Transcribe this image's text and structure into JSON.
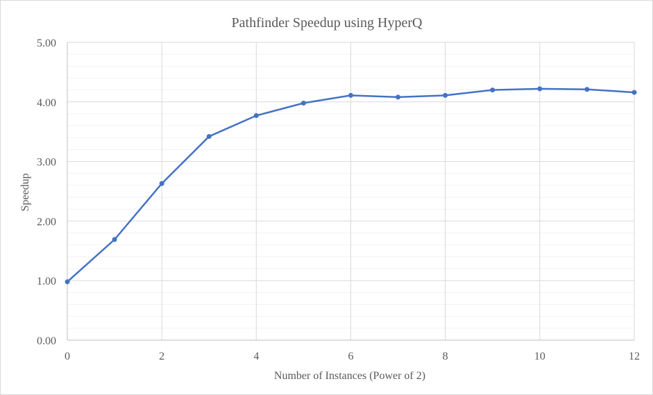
{
  "chart_data": {
    "type": "line",
    "title": "Pathfinder Speedup using HyperQ",
    "xlabel": "Number of Instances (Power of 2)",
    "ylabel": "Speedup",
    "xlim": [
      0,
      12
    ],
    "ylim": [
      0,
      5
    ],
    "x_ticks": [
      0,
      2,
      4,
      6,
      8,
      10,
      12
    ],
    "y_ticks": [
      "0.00",
      "1.00",
      "2.00",
      "3.00",
      "4.00",
      "5.00"
    ],
    "grid": true,
    "legend": "none",
    "series": [
      {
        "color": "#4472c4",
        "x": [
          0,
          1,
          2,
          3,
          4,
          5,
          6,
          7,
          8,
          9,
          10,
          11,
          12
        ],
        "values": [
          0.98,
          1.69,
          2.63,
          3.42,
          3.77,
          3.98,
          4.11,
          4.08,
          4.11,
          4.2,
          4.22,
          4.21,
          4.16
        ]
      }
    ]
  }
}
